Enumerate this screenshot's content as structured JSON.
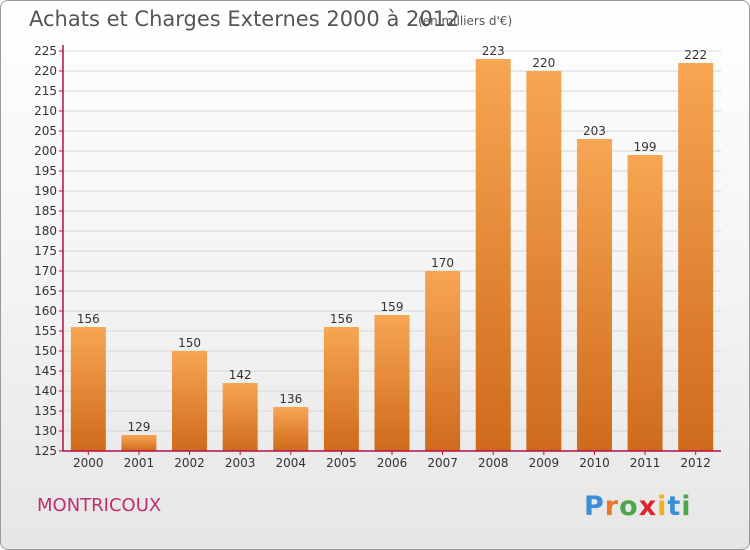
{
  "header": {
    "title": "Achats et Charges Externes 2000 à 2012",
    "unit": "(en milliers d'€)"
  },
  "footer": {
    "commune": "MONTRICOUX"
  },
  "logo": {
    "text": "Proxiti",
    "letter_colors": [
      "#3a8fd6",
      "#e8782a",
      "#4aa84a",
      "#d8262f",
      "#f0b020",
      "#3a8fd6",
      "#4aa84a"
    ]
  },
  "colors": {
    "bar_light": "#f7a653",
    "bar_dark": "#cf6a1c",
    "axis": "#b50f4a",
    "grid": "#d6d6d6"
  },
  "chart_data": {
    "type": "bar",
    "title": "Achats et Charges Externes 2000 à 2012",
    "subtitle": "(en milliers d'€)",
    "categories": [
      "2000",
      "2001",
      "2002",
      "2003",
      "2004",
      "2005",
      "2006",
      "2007",
      "2008",
      "2009",
      "2010",
      "2011",
      "2012"
    ],
    "values": [
      156,
      129,
      150,
      142,
      136,
      156,
      159,
      170,
      223,
      220,
      203,
      199,
      222
    ],
    "ylim": [
      125,
      225
    ],
    "yticks": [
      125,
      130,
      135,
      140,
      145,
      150,
      155,
      160,
      165,
      170,
      175,
      180,
      185,
      190,
      195,
      200,
      205,
      210,
      215,
      220,
      225
    ],
    "grid": true,
    "legend": false
  }
}
